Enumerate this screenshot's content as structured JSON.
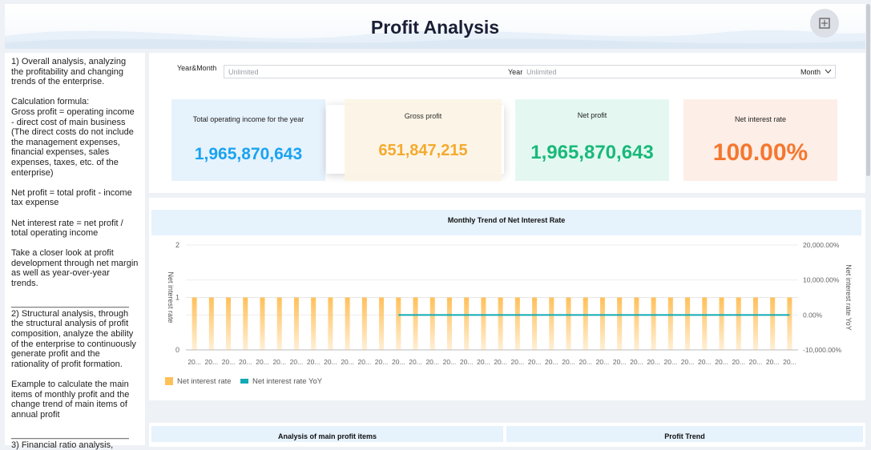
{
  "header": {
    "title": "Profit Analysis",
    "icon": "collapse-grid-icon"
  },
  "sidebar": {
    "text": "1) Overall analysis, analyzing the profitability and changing trends of the enterprise.\n\nCalculation formula:\nGross profit = operating income - direct cost of main business\n(The direct costs do not include the management expenses, financial expenses, sales expenses, taxes, etc. of the enterprise)\n\nNet profit = total profit - income tax expense\n\nNet interest rate = net profit / total operating income\n\nTake a closer look at profit development through net margin as well as year-over-year trends.\n\n________________________\n2) Structural analysis, through the structural analysis of profit composition, analyze the ability of the enterprise to continuously generate profit and the rationality of profit formation.\n\nExample to calculate the main items of monthly profit and the change trend of main items of annual profit\n\n________________________\n3) Financial ratio analysis,"
  },
  "filter": {
    "label": "Year&Month",
    "placeholder1": "Unlimited",
    "year_label": "Year",
    "placeholder2": "Unlimited",
    "unit": "Month"
  },
  "kpis": [
    {
      "title": "Total operating income for the year",
      "value": "1,965,870,643",
      "color": "#1aa3f0",
      "bg": "#e6f2fc"
    },
    {
      "title": "Gross profit",
      "value": "651,847,215",
      "color": "#f5a623",
      "bg": "#fcf5e6"
    },
    {
      "title": "Net profit",
      "value": "1,965,870,643",
      "color": "#19b97a",
      "bg": "#e4f8f1"
    },
    {
      "title": "Net interest rate",
      "value": "100.00%",
      "color": "#f5772f",
      "bg": "#fdeee7"
    }
  ],
  "chart_data": {
    "type": "bar",
    "title": "Monthly Trend of Net Interest Rate",
    "ylabel": "Net interest rate",
    "y2label": "Net interest rate YoY",
    "ylim": [
      0,
      2
    ],
    "y2lim": [
      -10000,
      20000
    ],
    "yticks": [
      "0",
      "1",
      "2"
    ],
    "y2ticks": [
      "-10,000.00%",
      "0.00%",
      "10,000.00%",
      "20,000.00%"
    ],
    "category_label": "20...",
    "category_count": 36,
    "series": [
      {
        "name": "Net interest rate",
        "type": "bar",
        "color": "#ffc05a",
        "values": [
          1,
          1,
          1,
          1,
          1,
          1,
          1,
          1,
          1,
          1,
          1,
          1,
          1,
          1,
          1,
          1,
          1,
          1,
          1,
          1,
          1,
          1,
          1,
          1,
          1,
          1,
          1,
          1,
          1,
          1,
          1,
          1,
          1,
          1,
          1,
          1
        ]
      },
      {
        "name": "Net interest rate YoY",
        "type": "line",
        "color": "#11aab5",
        "values": [
          null,
          null,
          null,
          null,
          null,
          null,
          null,
          null,
          null,
          null,
          null,
          null,
          0,
          0,
          0,
          0,
          0,
          0,
          0,
          0,
          0,
          0,
          0,
          0,
          0,
          0,
          0,
          0,
          0,
          0,
          0,
          0,
          0,
          0,
          0,
          0
        ]
      }
    ],
    "legend": "bottom-left"
  },
  "bottom": {
    "left_title": "Analysis of main profit items",
    "right_title": "Profit Trend"
  }
}
